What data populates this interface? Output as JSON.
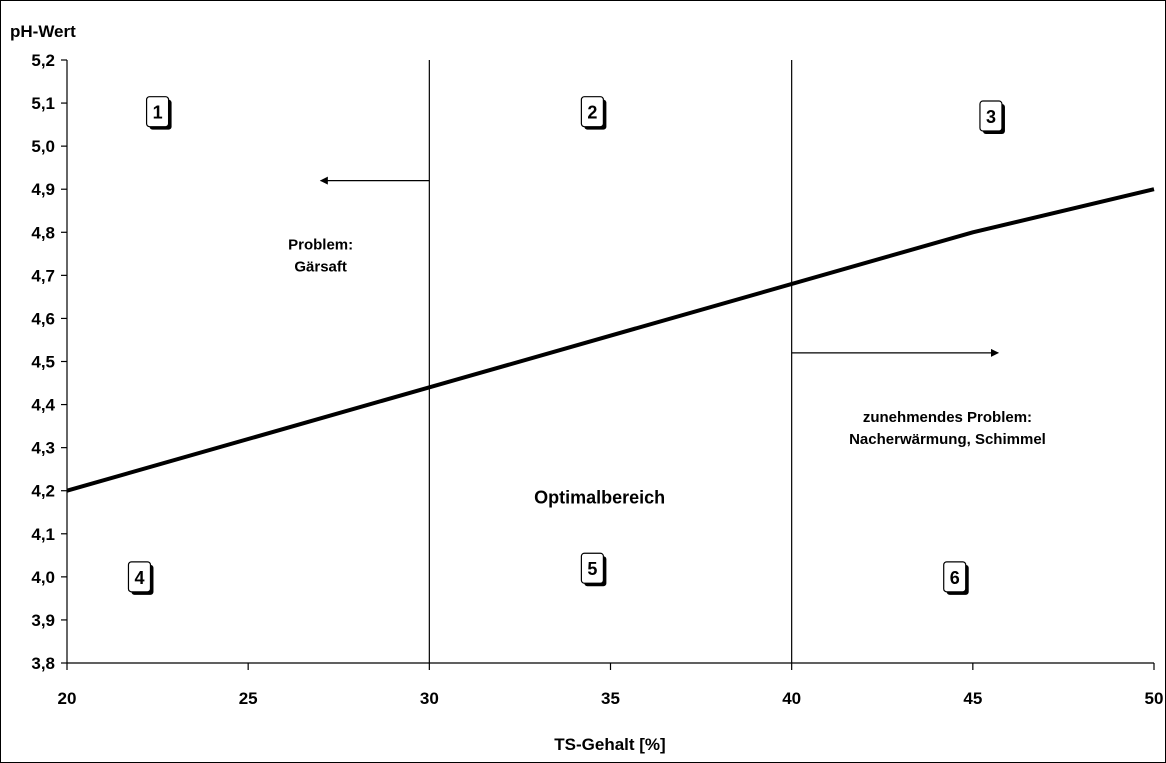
{
  "chart_data": {
    "type": "line",
    "title": "",
    "ylabel": "pH-Wert",
    "xlabel": "TS-Gehalt [%]",
    "xlim": [
      20,
      50
    ],
    "ylim": [
      3.8,
      5.2
    ],
    "x_ticks": [
      20,
      25,
      30,
      35,
      40,
      45,
      50
    ],
    "x_tick_labels": [
      "20",
      "25",
      "30",
      "35",
      "40",
      "45",
      "50"
    ],
    "y_ticks": [
      3.8,
      3.9,
      4.0,
      4.1,
      4.2,
      4.3,
      4.4,
      4.5,
      4.6,
      4.7,
      4.8,
      4.9,
      5.0,
      5.1,
      5.2
    ],
    "y_tick_labels": [
      "3,8",
      "3,9",
      "4,0",
      "4,1",
      "4,2",
      "4,3",
      "4,4",
      "4,5",
      "4,6",
      "4,7",
      "4,8",
      "4,9",
      "5,0",
      "5,1",
      "5,2"
    ],
    "grid": false,
    "legend": "none",
    "series": [
      {
        "x": [
          20,
          45,
          50
        ],
        "values": [
          4.2,
          4.8,
          4.9
        ]
      }
    ],
    "vertical_lines": [
      30,
      40
    ],
    "zones": [
      {
        "label": "1",
        "x": 22.5,
        "y": 5.08
      },
      {
        "label": "2",
        "x": 34.5,
        "y": 5.08
      },
      {
        "label": "3",
        "x": 45.5,
        "y": 5.07
      },
      {
        "label": "4",
        "x": 22.0,
        "y": 4.0
      },
      {
        "label": "5",
        "x": 34.5,
        "y": 4.02
      },
      {
        "label": "6",
        "x": 44.5,
        "y": 4.0
      }
    ],
    "annotations": [
      {
        "lines": [
          "Problem:",
          "Gärsaft"
        ],
        "x": 27.0,
        "y": 4.76
      },
      {
        "lines": [
          "zunehmendes Problem:",
          "Nacherwärmung, Schimmel"
        ],
        "x": 44.3,
        "y": 4.36
      },
      {
        "lines": [
          "Optimalbereich"
        ],
        "x": 34.7,
        "y": 4.17,
        "big": true
      }
    ],
    "arrows": [
      {
        "x_from": 30,
        "x_to": 27.0,
        "y": 4.92
      },
      {
        "x_from": 40,
        "x_to": 45.7,
        "y": 4.52
      }
    ]
  }
}
